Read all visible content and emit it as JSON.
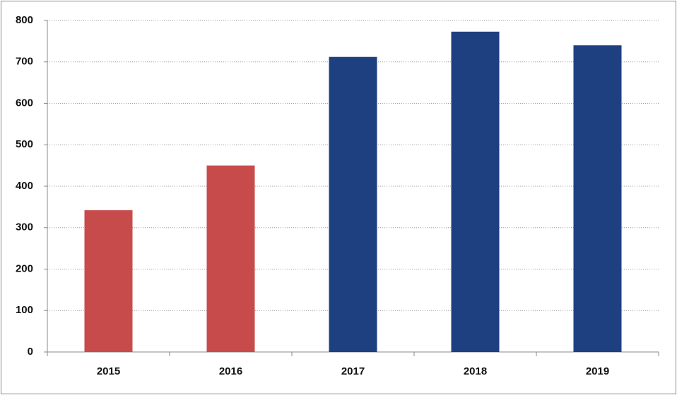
{
  "chart_data": {
    "type": "bar",
    "categories": [
      "2015",
      "2016",
      "2017",
      "2018",
      "2019"
    ],
    "values": [
      342,
      450,
      712,
      773,
      740
    ],
    "colors": [
      "#c84b4b",
      "#c84b4b",
      "#1e3f80",
      "#1e3f80",
      "#1e3f80"
    ],
    "ylim": [
      0,
      800
    ],
    "yticks": [
      0,
      100,
      200,
      300,
      400,
      500,
      600,
      700,
      800
    ],
    "grid": true
  }
}
